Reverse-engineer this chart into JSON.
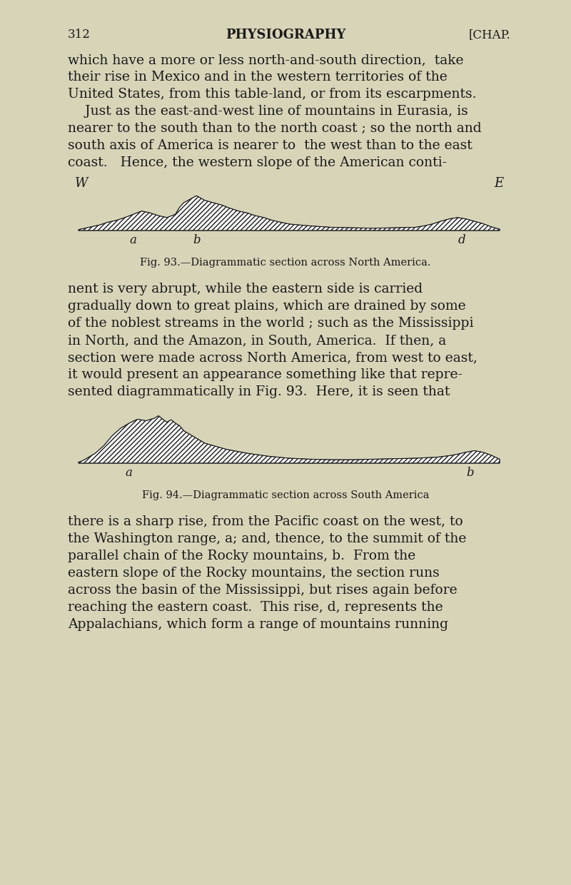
{
  "bg_color": "#d8d4b8",
  "text_color": "#1a1a1a",
  "page_num": "312",
  "page_title": "PHYSIOGRAPHY",
  "page_header_right": "[CHAP.",
  "body_font_size": 13.5,
  "para1": "which have a more or less north-and-south direction,  take\ntheir rise in Mexico and in the western territories of the\nUnited States, from this table-land, or from its escarpments.\n    Just as the east-and-west line of mountains in Eurasia, is\nnearer to the south than to the north coast ; so the north and\nsouth axis of America is nearer to  the west than to the east\ncoast.   Hence, the western slope of the American conti-",
  "fig93_caption": "Fig. 93.—Diagrammatic section across North America.",
  "para2": "nent is very abrupt, while the eastern side is carried\ngradually down to great plains, which are drained by some\nof the noblest streams in the world ; such as the Mississippi\nin North, and the Amazon, in South, America.  If then, a\nsection were made across North America, from west to east,\nit would present an appearance something like that repre-\nsented diagrammatically in Fig. 93.  Here, it is seen that",
  "fig94_caption": "Fig. 94.—Diagrammatic section across South America",
  "para3": "there is a sharp rise, from the Pacific coast on the west, to\nthe Washington range, α; and, thence, to the summit of the\nparallel chain of the Rocky mountains, β.  From the\neastern slope of the Rocky mountains, the section runs\nacross the basin of the Mississippi, but rises again before\nreaching the eastern coast.  This rise, δ, represents the\nAppalachians, which form a range of mountains running",
  "fig93_label_W": "W",
  "fig93_label_E": "E",
  "fig93_label_a": "a",
  "fig93_label_b": "b",
  "fig93_label_d": "d",
  "fig94_label_a": "a",
  "fig94_label_b": "b"
}
